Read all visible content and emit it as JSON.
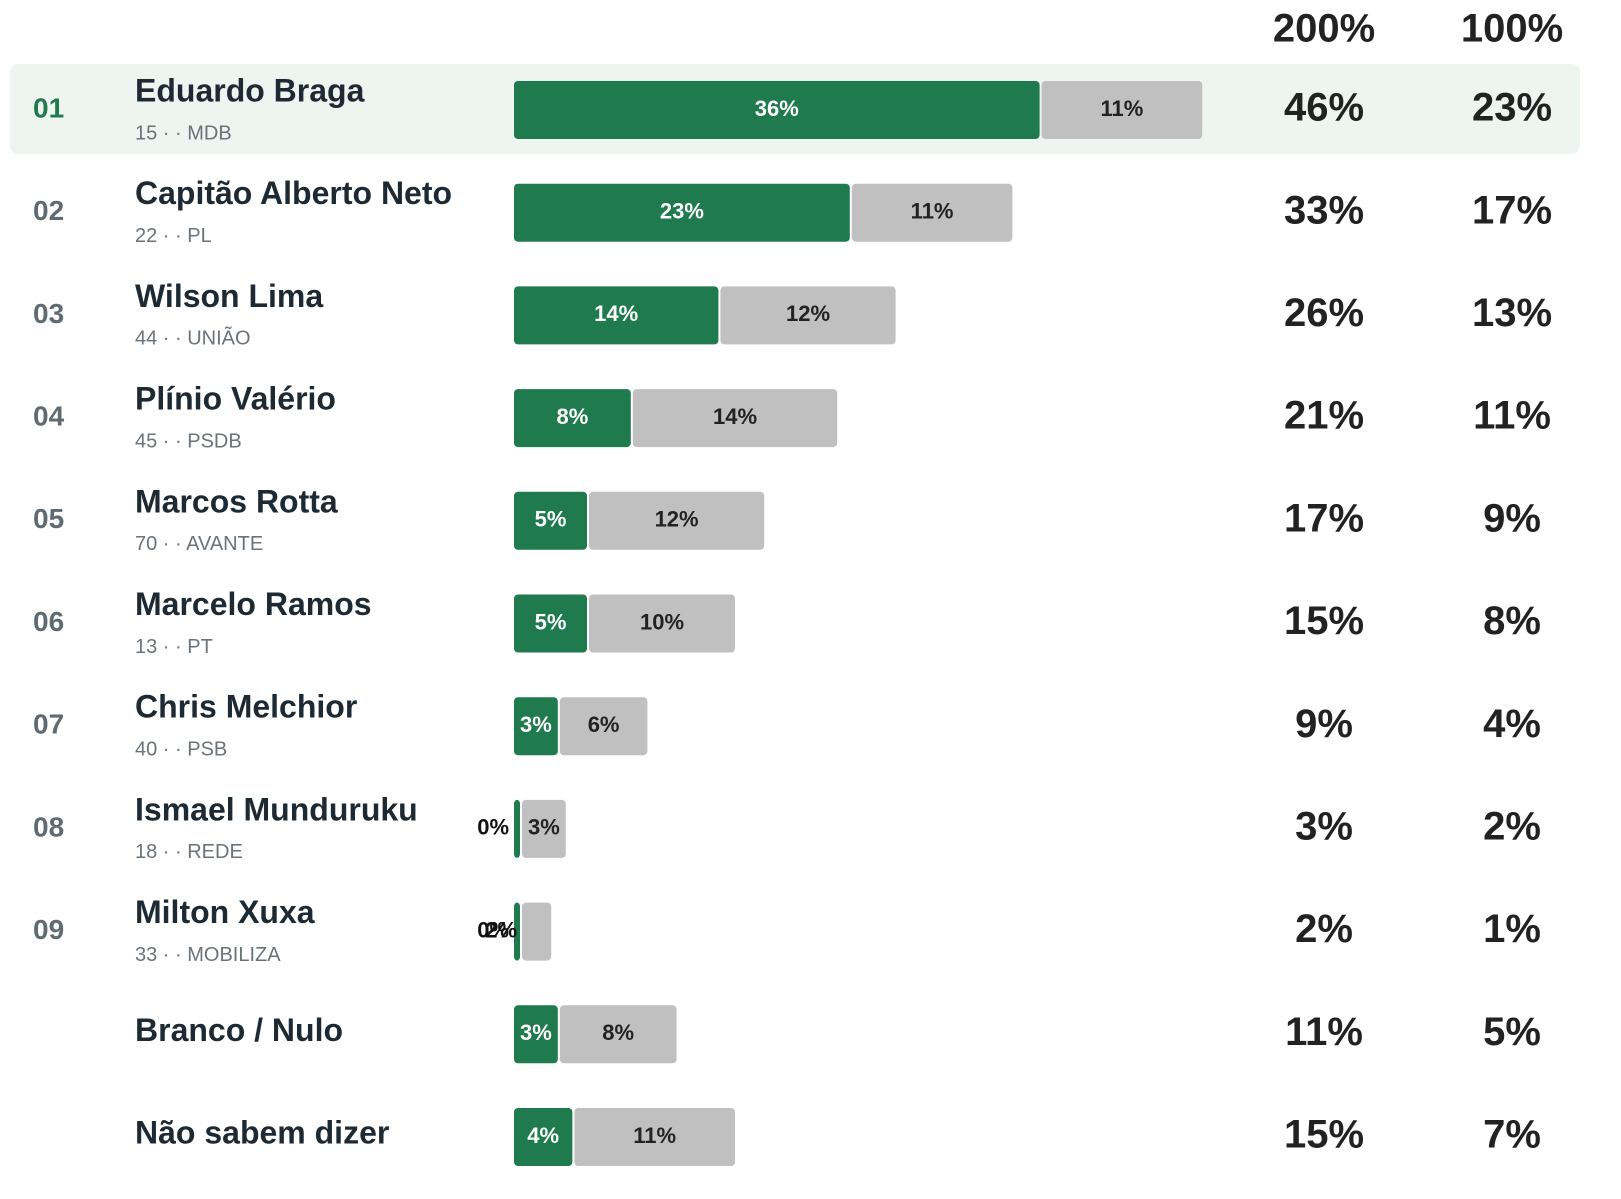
{
  "header": {
    "columns": [
      "200%",
      "100%"
    ]
  },
  "rows": [
    {
      "rank": "01",
      "name": "Eduardo Braga",
      "sub": "15 · · MDB",
      "values": [
        36,
        11
      ],
      "value_labels": [
        "36%",
        "11%"
      ],
      "totals": [
        "46%",
        "23%"
      ]
    },
    {
      "rank": "02",
      "name": "Capitão Alberto Neto",
      "sub": "22 · · PL",
      "values": [
        23,
        11
      ],
      "value_labels": [
        "23%",
        "11%"
      ],
      "totals": [
        "33%",
        "17%"
      ]
    },
    {
      "rank": "03",
      "name": "Wilson Lima",
      "sub": "44 · · UNIÃO",
      "values": [
        14,
        12
      ],
      "value_labels": [
        "14%",
        "12%"
      ],
      "totals": [
        "26%",
        "13%"
      ]
    },
    {
      "rank": "04",
      "name": "Plínio Valério",
      "sub": "45 · · PSDB",
      "values": [
        8,
        14
      ],
      "value_labels": [
        "8%",
        "14%"
      ],
      "totals": [
        "21%",
        "11%"
      ]
    },
    {
      "rank": "05",
      "name": "Marcos Rotta",
      "sub": "70 · · AVANTE",
      "values": [
        5,
        12
      ],
      "value_labels": [
        "5%",
        "12%"
      ],
      "totals": [
        "17%",
        "9%"
      ]
    },
    {
      "rank": "06",
      "name": "Marcelo Ramos",
      "sub": "13 · · PT",
      "values": [
        5,
        10
      ],
      "value_labels": [
        "5%",
        "10%"
      ],
      "totals": [
        "15%",
        "8%"
      ]
    },
    {
      "rank": "07",
      "name": "Chris Melchior",
      "sub": "40 · · PSB",
      "values": [
        3,
        6
      ],
      "value_labels": [
        "3%",
        "6%"
      ],
      "totals": [
        "9%",
        "4%"
      ]
    },
    {
      "rank": "08",
      "name": "Ismael Munduruku",
      "sub": "18 · · REDE",
      "values": [
        0,
        3
      ],
      "value_labels": [
        "0%",
        "3%"
      ],
      "totals": [
        "3%",
        "2%"
      ]
    },
    {
      "rank": "09",
      "name": "Milton Xuxa",
      "sub": "33 · · MOBILIZA",
      "values": [
        0,
        2
      ],
      "value_labels": [
        "0%",
        "2%"
      ],
      "totals": [
        "2%",
        "1%"
      ]
    },
    {
      "name": "Branco / Nulo",
      "values": [
        3,
        8
      ],
      "value_labels": [
        "3%",
        "8%"
      ],
      "totals": [
        "11%",
        "5%"
      ]
    },
    {
      "name": "Não sabem dizer",
      "values": [
        4,
        11
      ],
      "value_labels": [
        "4%",
        "11%"
      ],
      "totals": [
        "15%",
        "7%"
      ]
    }
  ]
}
